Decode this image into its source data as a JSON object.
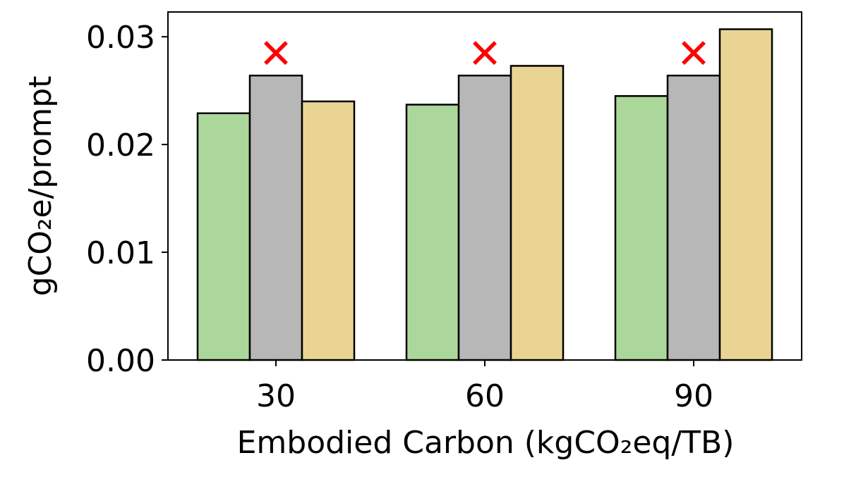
{
  "chart_data": {
    "type": "bar",
    "title": "",
    "xlabel": "Embodied Carbon (kgCO₂eq/TB)",
    "ylabel": "gCO₂e/prompt",
    "categories": [
      "30",
      "60",
      "90"
    ],
    "series": [
      {
        "values": [
          0.0229,
          0.0237,
          0.0245
        ],
        "color": "#acd79a"
      },
      {
        "values": [
          0.0264,
          0.0264,
          0.0264
        ],
        "color": "#b7b7b7"
      },
      {
        "values": [
          0.024,
          0.0273,
          0.0307
        ],
        "color": "#e9d494"
      }
    ],
    "markers": [
      {
        "category": "30",
        "series_index": 1,
        "symbol": "×",
        "color": "#ff0000"
      },
      {
        "category": "60",
        "series_index": 1,
        "symbol": "×",
        "color": "#ff0000"
      },
      {
        "category": "90",
        "series_index": 1,
        "symbol": "×",
        "color": "#ff0000"
      }
    ],
    "ylim": [
      0,
      0.0323
    ],
    "yticks": [
      "0.00",
      "0.01",
      "0.02",
      "0.03"
    ],
    "grid": false,
    "legend": "none",
    "bar_edge_color": "#000000"
  }
}
